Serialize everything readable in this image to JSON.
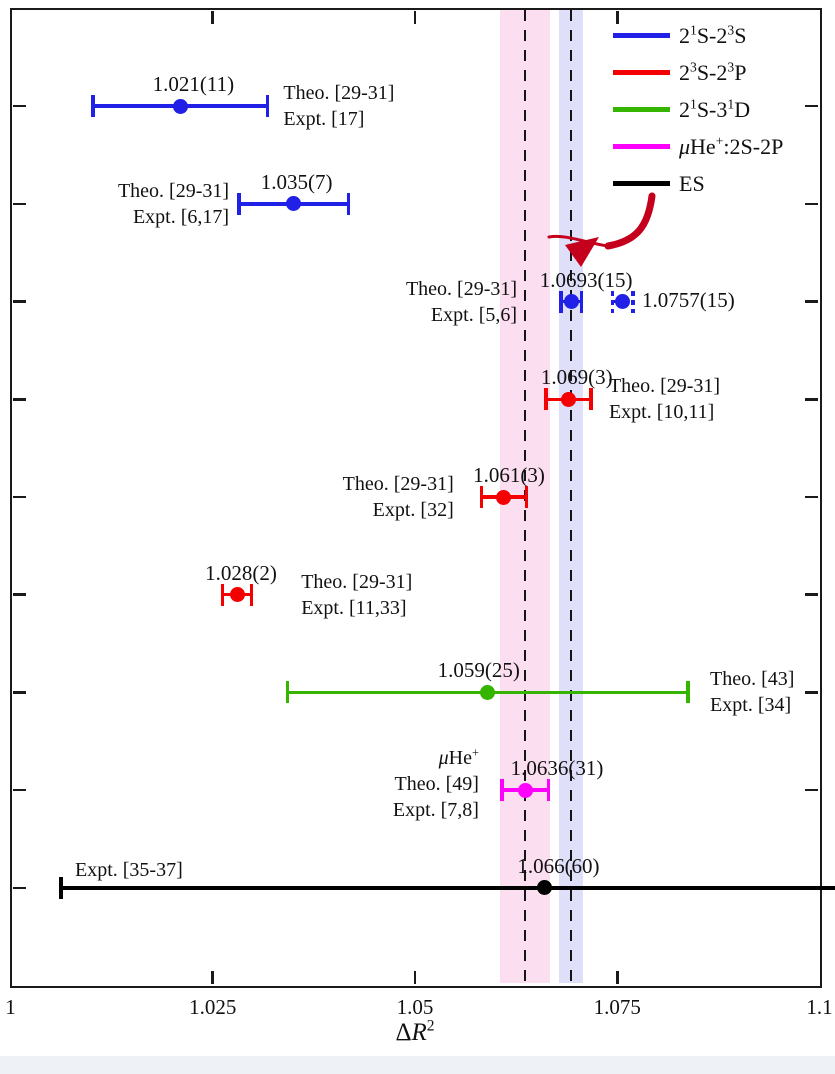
{
  "figure": {
    "background": "#ffffff",
    "page_strip_color": "#eef1f6"
  },
  "chart_data": {
    "type": "scatter",
    "title": "",
    "xlabel": "ΔR²",
    "xlabel_segments": [
      {
        "t": "Δ"
      },
      {
        "t": "R",
        "italic": true
      },
      {
        "t": "2",
        "sup": true
      }
    ],
    "xlim": [
      1.0,
      1.1
    ],
    "xticks": [
      {
        "v": 1,
        "label": "1"
      },
      {
        "v": 1.025,
        "label": "1.025"
      },
      {
        "v": 1.05,
        "label": "1.05"
      },
      {
        "v": 1.075,
        "label": "1.075"
      },
      {
        "v": 1.1,
        "label": "1.1"
      }
    ],
    "n_row_ticks": 9,
    "grid": false,
    "legend": {
      "position": "top-right",
      "items": [
        {
          "color": "#2020e6",
          "label": "2(1)S-2(3)S",
          "segments": [
            {
              "t": "2"
            },
            {
              "t": "1",
              "sup": true
            },
            {
              "t": "S-2"
            },
            {
              "t": "3",
              "sup": true
            },
            {
              "t": "S"
            }
          ]
        },
        {
          "color": "#f40000",
          "label": "2(3)S-2(3)P",
          "segments": [
            {
              "t": "2"
            },
            {
              "t": "3",
              "sup": true
            },
            {
              "t": "S-2"
            },
            {
              "t": "3",
              "sup": true
            },
            {
              "t": "P"
            }
          ]
        },
        {
          "color": "#35b400",
          "label": "2(1)S-3(1)D",
          "segments": [
            {
              "t": "2"
            },
            {
              "t": "1",
              "sup": true
            },
            {
              "t": "S-3"
            },
            {
              "t": "1",
              "sup": true
            },
            {
              "t": "D"
            }
          ]
        },
        {
          "color": "#ff00ff",
          "label": "μHe(+):2S-2P",
          "segments": [
            {
              "t": "μ",
              "italic": true
            },
            {
              "t": "He"
            },
            {
              "t": "+",
              "sup": true
            },
            {
              "t": ":2S-2P"
            }
          ]
        },
        {
          "color": "#000000",
          "label": "ES",
          "segments": [
            {
              "t": "ES"
            }
          ]
        }
      ]
    },
    "bands": [
      {
        "value": 1.0636,
        "halfwidth": 0.0031,
        "color": "#fbdff0"
      },
      {
        "value": 1.0693,
        "halfwidth": 0.0015,
        "color": "#dfdff9"
      }
    ],
    "guides": [
      1.0636,
      1.0693
    ],
    "annotation_arrow": {
      "points_to_value": 1.0693,
      "color": "#c4001c"
    },
    "points": [
      {
        "row": 0,
        "series": "2(1)S-2(3)S",
        "color": "#2020e6",
        "value": 1.021,
        "error": 0.011,
        "value_label": "1.021(11)",
        "label_dx": 13,
        "style": "solid",
        "refs": {
          "side": "right",
          "gap": 14,
          "lines": [
            [
              {
                "t": "Theo. [29-31]"
              }
            ],
            [
              {
                "t": "Expt. [17]"
              }
            ]
          ]
        }
      },
      {
        "row": 1,
        "series": "2(1)S-2(3)S",
        "color": "#2020e6",
        "value": 1.035,
        "error": 0.007,
        "value_label": "1.035(7)",
        "label_dx": 3,
        "style": "solid",
        "refs": {
          "side": "left",
          "gap": 8,
          "lines": [
            [
              {
                "t": "Theo. [29-31]"
              }
            ],
            [
              {
                "t": "Expt. [6,17]"
              }
            ]
          ]
        }
      },
      {
        "row": 2,
        "series": "2(1)S-2(3)S",
        "color": "#2020e6",
        "value": 1.0693,
        "error": 0.0015,
        "value_label": "1.0693(15)",
        "label_dx": 15,
        "style": "solid",
        "refs": {
          "side": "left",
          "gap": 42,
          "lines": [
            [
              {
                "t": "Theo. [29-31]"
              }
            ],
            [
              {
                "t": "Expt. [5,6]"
              }
            ]
          ]
        },
        "companion": {
          "value": 1.0757,
          "error": 0.0015,
          "label": "1.0757(15)",
          "style": "dashed"
        }
      },
      {
        "row": 3,
        "series": "2(3)S-2(3)P",
        "color": "#f40000",
        "value": 1.069,
        "error": 0.003,
        "value_label": "1.069(3)",
        "label_dx": 8,
        "style": "solid",
        "refs": {
          "side": "right",
          "gap": 16,
          "lines": [
            [
              {
                "t": "Theo. [29-31]"
              }
            ],
            [
              {
                "t": "Expt. [10,11]"
              }
            ]
          ]
        }
      },
      {
        "row": 4,
        "series": "2(3)S-2(3)P",
        "color": "#f40000",
        "value": 1.061,
        "error": 0.003,
        "value_label": "1.061(3)",
        "label_dx": 5,
        "style": "solid",
        "refs": {
          "side": "left",
          "gap": 26,
          "lines": [
            [
              {
                "t": "Theo. [29-31]"
              }
            ],
            [
              {
                "t": "Expt. [32]"
              }
            ]
          ]
        }
      },
      {
        "row": 5,
        "series": "2(3)S-2(3)P",
        "color": "#f40000",
        "value": 1.028,
        "error": 0.002,
        "value_label": "1.028(2)",
        "label_dx": 4,
        "style": "solid",
        "refs": {
          "side": "right",
          "gap": 48,
          "lines": [
            [
              {
                "t": "Theo. [29-31]"
              }
            ],
            [
              {
                "t": "Expt. [11,33]"
              }
            ]
          ]
        }
      },
      {
        "row": 6,
        "series": "2(1)S-3(1)D",
        "color": "#35b400",
        "value": 1.059,
        "error": 0.025,
        "value_label": "1.059(25)",
        "label_dx": -9,
        "style": "solid",
        "refs": {
          "side": "right",
          "gap": 20,
          "lines": [
            [
              {
                "t": "Theo. [43]"
              }
            ],
            [
              {
                "t": "Expt. [34]"
              }
            ]
          ]
        }
      },
      {
        "row": 7,
        "series": "μHe(+):2S-2P",
        "color": "#ff00ff",
        "value": 1.0636,
        "error": 0.0031,
        "value_label": "1.0636(31)",
        "label_dx": 32,
        "style": "solid",
        "refs": {
          "side": "left",
          "gap": 21,
          "dy": -6,
          "lines": [
            [
              {
                "t": "μ",
                "italic": true
              },
              {
                "t": "He"
              },
              {
                "t": "+",
                "sup": true
              }
            ],
            [
              {
                "t": "Theo. [49]"
              }
            ],
            [
              {
                "t": "Expt. [7,8]"
              }
            ]
          ]
        }
      },
      {
        "row": 8,
        "series": "ES",
        "color": "#000000",
        "value": 1.066,
        "error": 0.06,
        "value_label": "1.066(60)",
        "label_dx": 14,
        "style": "solid",
        "refs": {
          "side": "above-left",
          "x": 75,
          "lines": [
            [
              {
                "t": "Expt. [35-37]"
              }
            ]
          ]
        }
      }
    ]
  }
}
